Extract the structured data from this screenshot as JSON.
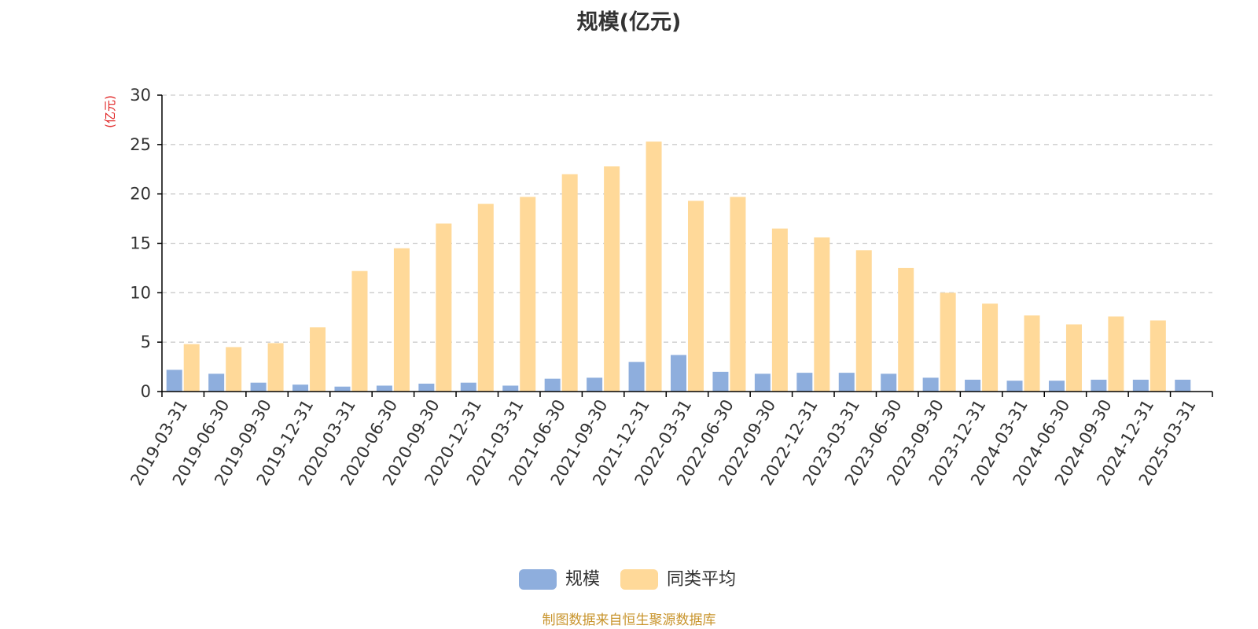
{
  "chart_data": {
    "type": "bar",
    "title": "规模(亿元)",
    "ylabel": "(亿元)",
    "xlabel": "",
    "ylim": [
      0,
      30
    ],
    "yticks": [
      0,
      5,
      10,
      15,
      20,
      25,
      30
    ],
    "grid": true,
    "legend_position": "bottom-center",
    "categories": [
      "2019-03-31",
      "2019-06-30",
      "2019-09-30",
      "2019-12-31",
      "2020-03-31",
      "2020-06-30",
      "2020-09-30",
      "2020-12-31",
      "2021-03-31",
      "2021-06-30",
      "2021-09-30",
      "2021-12-31",
      "2022-03-31",
      "2022-06-30",
      "2022-09-30",
      "2022-12-31",
      "2023-03-31",
      "2023-06-30",
      "2023-09-30",
      "2023-12-31",
      "2024-03-31",
      "2024-06-30",
      "2024-09-30",
      "2024-12-31",
      "2025-03-31"
    ],
    "series": [
      {
        "name": "规模",
        "color": "#8eaedd",
        "values": [
          2.2,
          1.8,
          0.9,
          0.7,
          0.5,
          0.6,
          0.8,
          0.9,
          0.6,
          1.3,
          1.4,
          3.0,
          3.7,
          2.0,
          1.8,
          1.9,
          1.9,
          1.8,
          1.4,
          1.2,
          1.1,
          1.1,
          1.2,
          1.2,
          1.2
        ]
      },
      {
        "name": "同类平均",
        "color": "#ffd999",
        "values": [
          4.8,
          4.5,
          4.9,
          6.5,
          12.2,
          14.5,
          17.0,
          19.0,
          19.7,
          22.0,
          22.8,
          25.3,
          19.3,
          19.7,
          16.5,
          15.6,
          14.3,
          12.5,
          10.0,
          8.9,
          7.7,
          6.8,
          7.6,
          7.2,
          null
        ]
      }
    ]
  },
  "source_note": "制图数据来自恒生聚源数据库",
  "colors": {
    "axis": "#000000",
    "grid": "#cccccc",
    "ylabel": "#e02020",
    "tick_text": "#333333"
  }
}
